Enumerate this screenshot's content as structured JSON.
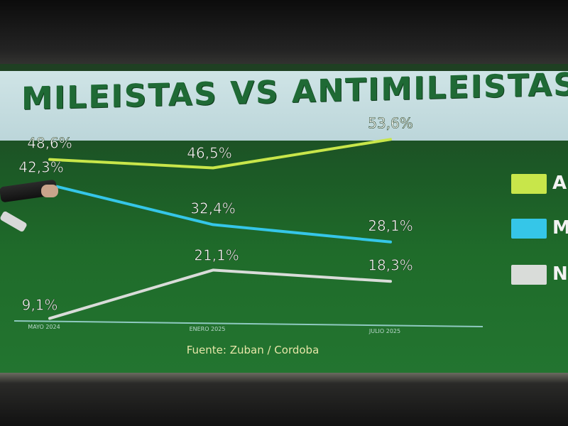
{
  "chart_data": {
    "type": "line",
    "title": "MILEISTAS VS ANTIMILEISTAS",
    "categories": [
      "MAYO 2024",
      "ENERO 2025",
      "JULIO 2025"
    ],
    "series": [
      {
        "color": "#c8e64a",
        "values": [
          48.6,
          46.5,
          53.6
        ],
        "labels": [
          "48,6%",
          "46,5%",
          "53,6%"
        ],
        "legend_label": "A"
      },
      {
        "color": "#35c6e8",
        "values": [
          42.3,
          32.4,
          28.1
        ],
        "labels": [
          "42,3%",
          "32,4%",
          "28,1%"
        ],
        "legend_label": "M"
      },
      {
        "color": "#d9dcd9",
        "values": [
          9.1,
          21.1,
          18.3
        ],
        "labels": [
          "9,1%",
          "21,1%",
          "18,3%"
        ],
        "legend_label": "N"
      }
    ],
    "source": "Fuente: Zuban / Cordoba",
    "ylim": [
      0,
      60
    ],
    "grid": false,
    "legend_position": "right"
  }
}
